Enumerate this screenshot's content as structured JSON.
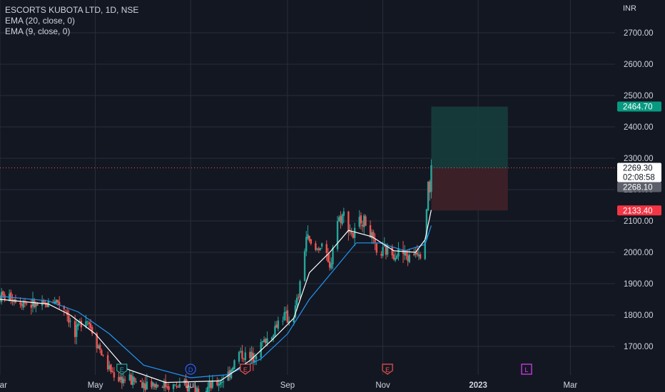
{
  "legend": {
    "symbol": "ESCORTS KUBOTA LTD, 1D, NSE",
    "ema20": "EMA (20, close, 0)",
    "ema9": "EMA (9, close, 0)"
  },
  "currency": "INR",
  "colors": {
    "background": "#131722",
    "grid": "#2a2e39",
    "up": "#26a69a",
    "down": "#ef5350",
    "ema20": "#2196f3",
    "ema9": "#ffffff",
    "target_zone": "#153b3a",
    "stop_zone": "#3d2129"
  },
  "badges": {
    "target": {
      "text": "2464.70",
      "value": 2464.7,
      "color": "#089981"
    },
    "last": {
      "text": "2269.30",
      "countdown": "02:08:58",
      "value": 2269.3,
      "color": "#ffffff"
    },
    "entry": {
      "text": "2268.10",
      "value": 2268.1,
      "color": "#5d606b"
    },
    "stop": {
      "text": "2133.40",
      "value": 2133.4,
      "color": "#f23645"
    }
  },
  "events": [
    {
      "letter": "E",
      "type": "earnings",
      "date": "2022-05-18"
    },
    {
      "letter": "D",
      "type": "dividend",
      "date": "2022-07-01"
    },
    {
      "letter": "E",
      "type": "earnings",
      "date": "2022-08-05"
    },
    {
      "letter": "E",
      "type": "earnings",
      "date": "2022-11-04"
    },
    {
      "letter": "L",
      "type": "other",
      "date": "2023-02-01"
    }
  ],
  "chart_data": {
    "type": "candlestick",
    "title": "ESCORTS KUBOTA LTD, 1D, NSE",
    "x_axis": {
      "type": "date",
      "range": [
        "2022-03-01",
        "2023-04-10"
      ],
      "ticks": [
        "Mar",
        "May",
        "Jul",
        "Sep",
        "Nov",
        "2023",
        "Mar"
      ]
    },
    "y_axis": {
      "unit": "INR",
      "range": [
        1590,
        2784
      ],
      "ticks": [
        "1700.00",
        "1800.00",
        "1900.00",
        "2000.00",
        "2100.00",
        "2200.00",
        "2300.00",
        "2400.00",
        "2500.00",
        "2600.00",
        "2700.00"
      ],
      "position": "right"
    },
    "grid": true,
    "close_path": [
      [
        "2022-03-01",
        1860
      ],
      [
        "2022-03-10",
        1855
      ],
      [
        "2022-03-20",
        1835
      ],
      [
        "2022-03-28",
        1825
      ],
      [
        "2022-04-05",
        1850
      ],
      [
        "2022-04-12",
        1820
      ],
      [
        "2022-04-18",
        1730
      ],
      [
        "2022-04-24",
        1810
      ],
      [
        "2022-04-30",
        1740
      ],
      [
        "2022-05-08",
        1640
      ],
      [
        "2022-05-15",
        1600
      ],
      [
        "2022-05-25",
        1590
      ],
      [
        "2022-06-10",
        1580
      ],
      [
        "2022-06-25",
        1570
      ],
      [
        "2022-07-05",
        1565
      ],
      [
        "2022-07-15",
        1570
      ],
      [
        "2022-07-25",
        1610
      ],
      [
        "2022-08-01",
        1680
      ],
      [
        "2022-08-08",
        1660
      ],
      [
        "2022-08-15",
        1705
      ],
      [
        "2022-08-22",
        1740
      ],
      [
        "2022-08-28",
        1800
      ],
      [
        "2022-09-04",
        1780
      ],
      [
        "2022-09-08",
        1860
      ],
      [
        "2022-09-13",
        2050
      ],
      [
        "2022-09-18",
        2000
      ],
      [
        "2022-09-23",
        2030
      ],
      [
        "2022-09-28",
        1940
      ],
      [
        "2022-10-02",
        2100
      ],
      [
        "2022-10-07",
        2120
      ],
      [
        "2022-10-13",
        2050
      ],
      [
        "2022-10-18",
        2110
      ],
      [
        "2022-10-23",
        2080
      ],
      [
        "2022-10-28",
        1990
      ],
      [
        "2022-11-03",
        2005
      ],
      [
        "2022-11-08",
        2000
      ],
      [
        "2022-11-13",
        2000
      ],
      [
        "2022-11-18",
        1980
      ],
      [
        "2022-11-23",
        2010
      ],
      [
        "2022-11-26",
        1995
      ],
      [
        "2022-11-28",
        2060
      ],
      [
        "2022-11-30",
        2230
      ],
      [
        "2022-12-01",
        2190
      ],
      [
        "2022-12-02",
        2269.3
      ]
    ],
    "ema_9_path": [
      [
        "2022-03-01",
        1850
      ],
      [
        "2022-04-01",
        1835
      ],
      [
        "2022-04-15",
        1800
      ],
      [
        "2022-05-01",
        1740
      ],
      [
        "2022-05-20",
        1630
      ],
      [
        "2022-06-15",
        1585
      ],
      [
        "2022-07-20",
        1590
      ],
      [
        "2022-08-08",
        1655
      ],
      [
        "2022-08-22",
        1720
      ],
      [
        "2022-09-05",
        1790
      ],
      [
        "2022-09-15",
        1935
      ],
      [
        "2022-09-28",
        2000
      ],
      [
        "2022-10-10",
        2070
      ],
      [
        "2022-10-25",
        2050
      ],
      [
        "2022-11-08",
        2005
      ],
      [
        "2022-11-22",
        2000
      ],
      [
        "2022-11-28",
        2040
      ],
      [
        "2022-12-02",
        2135
      ]
    ],
    "ema_20_path": [
      [
        "2022-03-01",
        1860
      ],
      [
        "2022-04-01",
        1845
      ],
      [
        "2022-04-20",
        1810
      ],
      [
        "2022-05-10",
        1740
      ],
      [
        "2022-06-01",
        1640
      ],
      [
        "2022-07-01",
        1600
      ],
      [
        "2022-07-25",
        1610
      ],
      [
        "2022-08-15",
        1660
      ],
      [
        "2022-09-01",
        1740
      ],
      [
        "2022-09-15",
        1850
      ],
      [
        "2022-09-30",
        1940
      ],
      [
        "2022-10-15",
        2030
      ],
      [
        "2022-10-30",
        2030
      ],
      [
        "2022-11-15",
        2005
      ],
      [
        "2022-11-28",
        2025
      ],
      [
        "2022-12-02",
        2085
      ]
    ],
    "position": {
      "entry": 2268.1,
      "target": 2464.7,
      "stop": 2133.4,
      "start": "2022-12-02",
      "end": "2023-01-20"
    }
  }
}
